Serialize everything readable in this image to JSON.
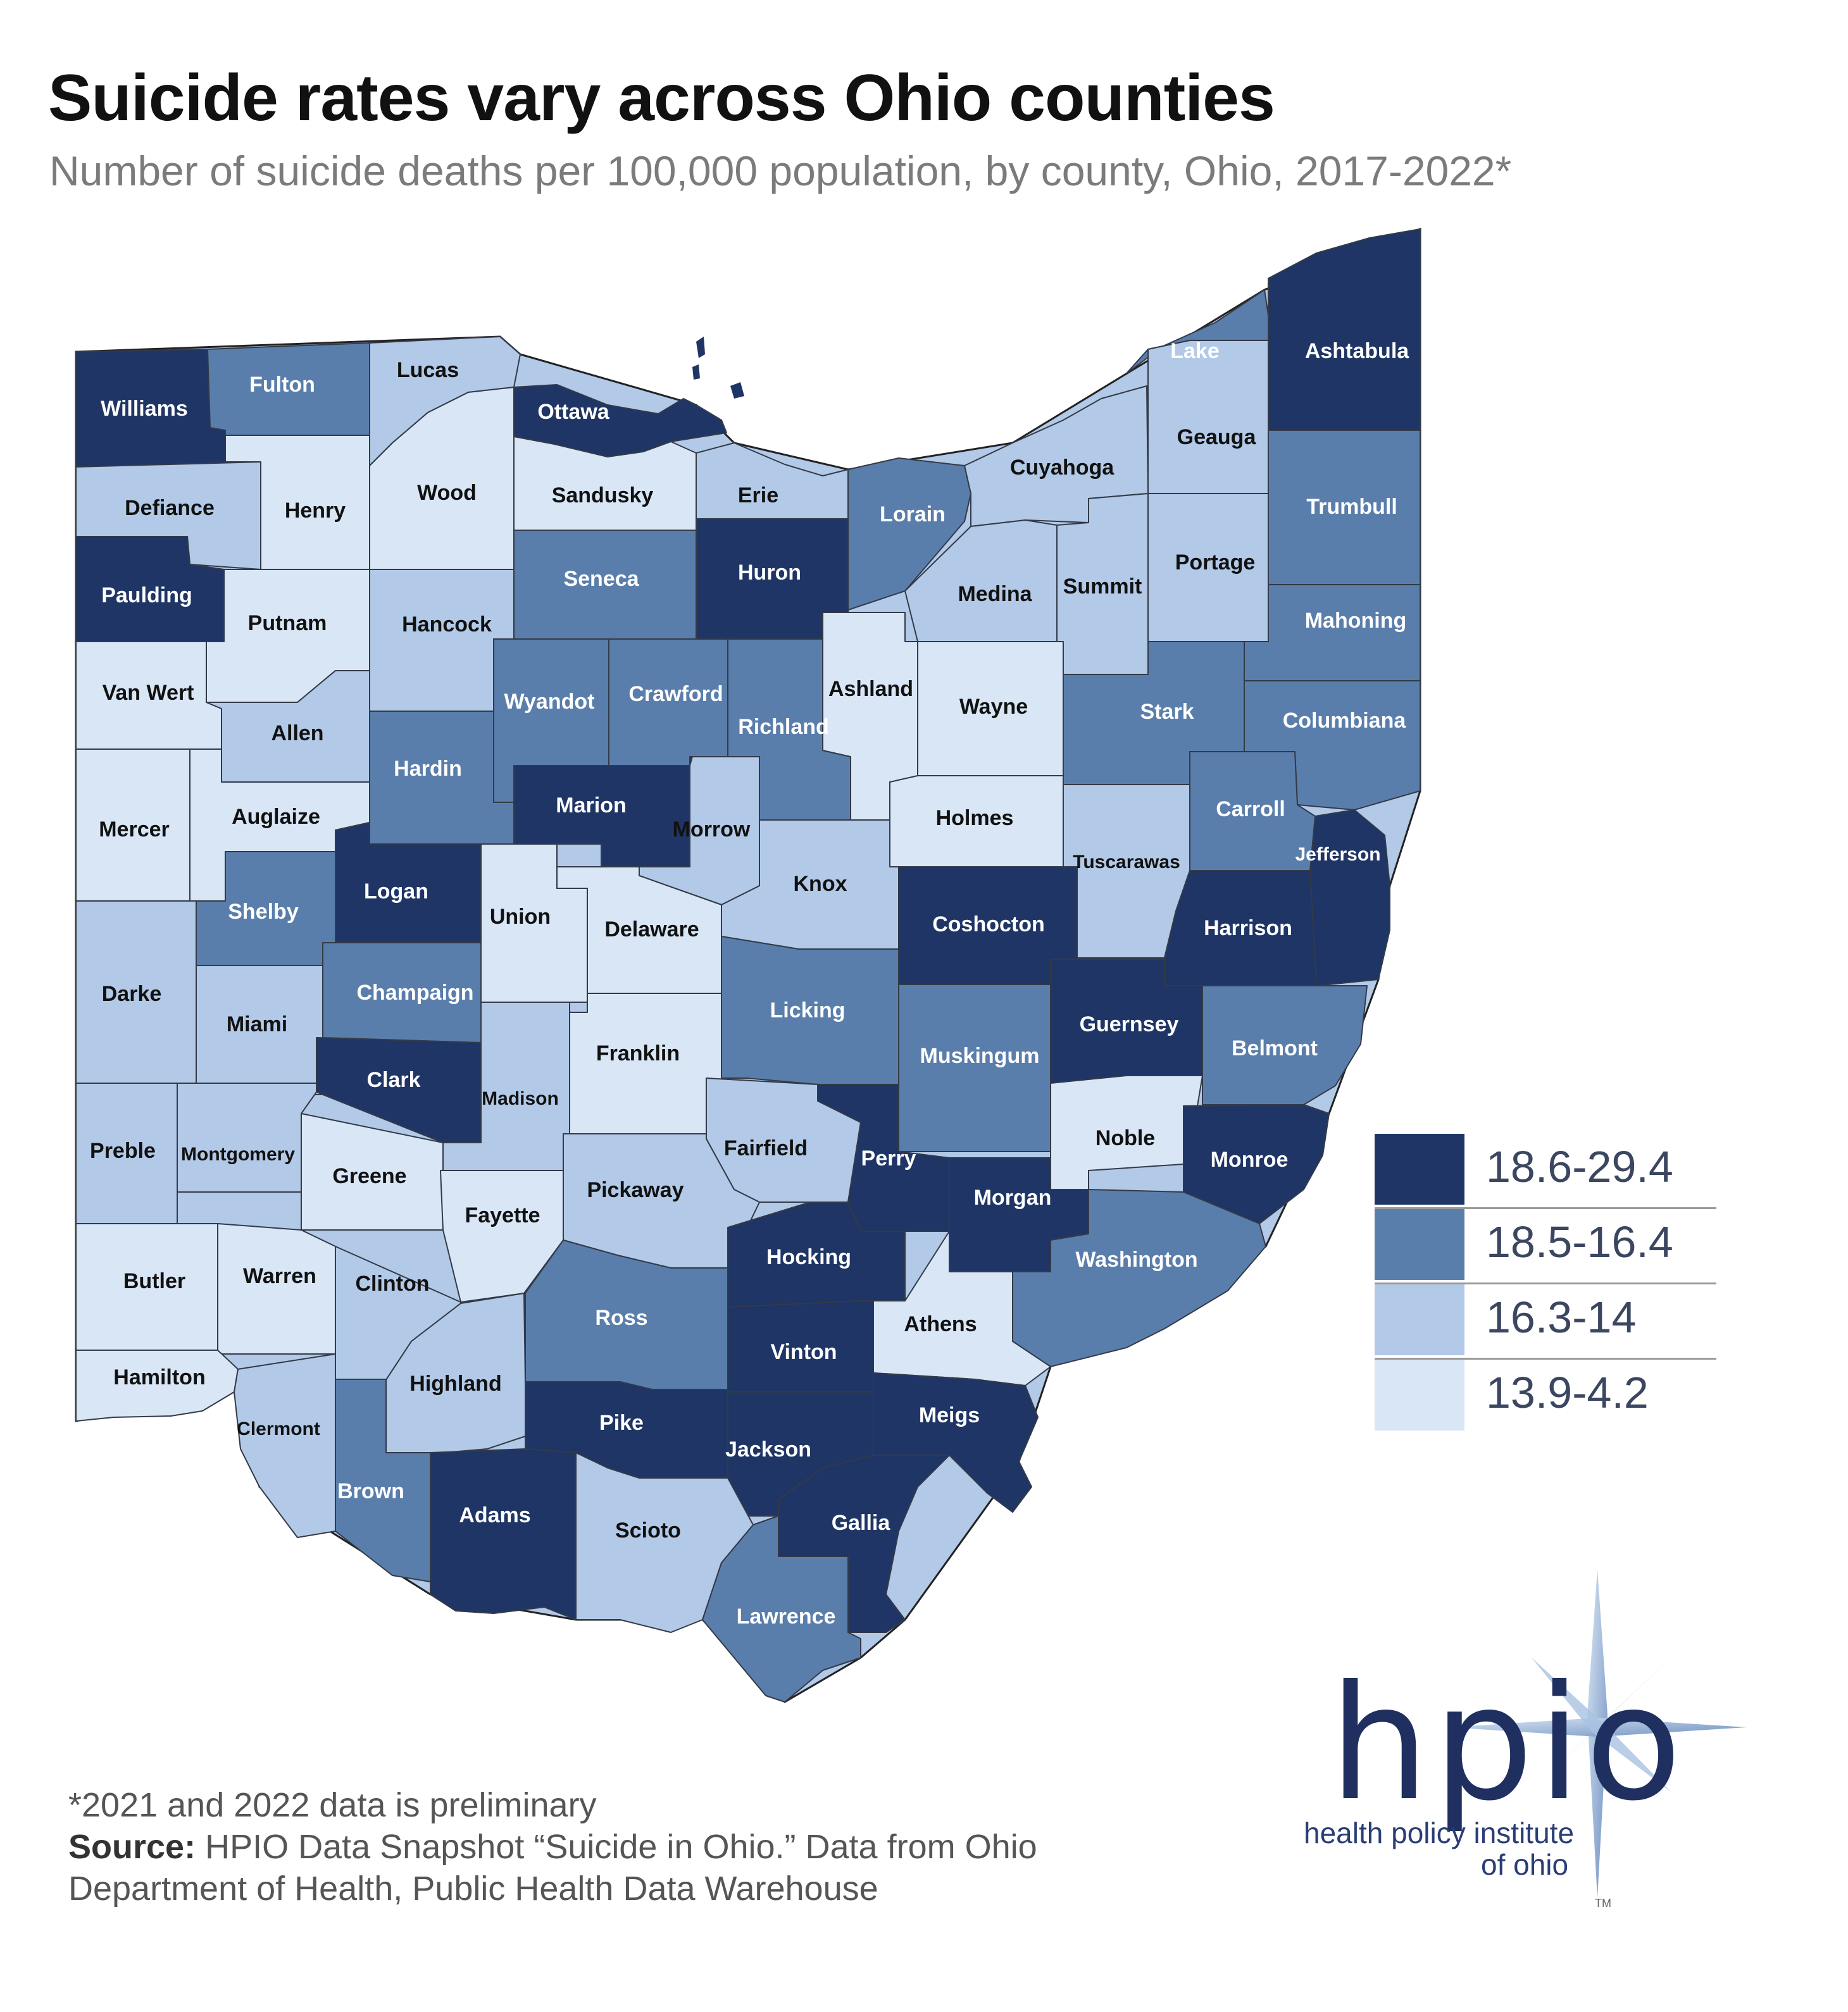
{
  "title": "Suicide rates vary across Ohio counties",
  "subtitle": "Number of suicide deaths per 100,000 population, by county, Ohio, 2017-2022*",
  "legend": [
    {
      "label": "18.6-29.4",
      "color": "#1f3565"
    },
    {
      "label": "18.5-16.4",
      "color": "#5a7eab"
    },
    {
      "label": "16.3-14",
      "color": "#b2c9e7"
    },
    {
      "label": "13.9-4.2",
      "color": "#d8e6f6"
    }
  ],
  "counties": [
    {
      "name": "Williams",
      "class": 0
    },
    {
      "name": "Fulton",
      "class": 1
    },
    {
      "name": "Lucas",
      "class": 2
    },
    {
      "name": "Ottawa",
      "class": 0
    },
    {
      "name": "Defiance",
      "class": 2
    },
    {
      "name": "Henry",
      "class": 3
    },
    {
      "name": "Wood",
      "class": 3
    },
    {
      "name": "Sandusky",
      "class": 3
    },
    {
      "name": "Erie",
      "class": 2
    },
    {
      "name": "Lorain",
      "class": 1
    },
    {
      "name": "Cuyahoga",
      "class": 2
    },
    {
      "name": "Lake",
      "class": 1
    },
    {
      "name": "Geauga",
      "class": 2
    },
    {
      "name": "Ashtabula",
      "class": 0
    },
    {
      "name": "Trumbull",
      "class": 1
    },
    {
      "name": "Paulding",
      "class": 0
    },
    {
      "name": "Putnam",
      "class": 3
    },
    {
      "name": "Hancock",
      "class": 2
    },
    {
      "name": "Seneca",
      "class": 1
    },
    {
      "name": "Huron",
      "class": 0
    },
    {
      "name": "Medina",
      "class": 2
    },
    {
      "name": "Summit",
      "class": 2
    },
    {
      "name": "Portage",
      "class": 2
    },
    {
      "name": "Mahoning",
      "class": 1
    },
    {
      "name": "Van Wert",
      "class": 3
    },
    {
      "name": "Allen",
      "class": 2
    },
    {
      "name": "Hardin",
      "class": 1
    },
    {
      "name": "Wyandot",
      "class": 1
    },
    {
      "name": "Crawford",
      "class": 1
    },
    {
      "name": "Richland",
      "class": 1
    },
    {
      "name": "Ashland",
      "class": 3
    },
    {
      "name": "Wayne",
      "class": 3
    },
    {
      "name": "Stark",
      "class": 1
    },
    {
      "name": "Columbiana",
      "class": 1
    },
    {
      "name": "Mercer",
      "class": 3
    },
    {
      "name": "Auglaize",
      "class": 3
    },
    {
      "name": "Marion",
      "class": 0
    },
    {
      "name": "Morrow",
      "class": 2
    },
    {
      "name": "Holmes",
      "class": 3
    },
    {
      "name": "Carroll",
      "class": 1
    },
    {
      "name": "Jefferson",
      "class": 0
    },
    {
      "name": "Tuscarawas",
      "class": 2
    },
    {
      "name": "Shelby",
      "class": 1
    },
    {
      "name": "Logan",
      "class": 0
    },
    {
      "name": "Union",
      "class": 3
    },
    {
      "name": "Delaware",
      "class": 3
    },
    {
      "name": "Knox",
      "class": 2
    },
    {
      "name": "Coshocton",
      "class": 0
    },
    {
      "name": "Harrison",
      "class": 0
    },
    {
      "name": "Darke",
      "class": 2
    },
    {
      "name": "Miami",
      "class": 2
    },
    {
      "name": "Champaign",
      "class": 1
    },
    {
      "name": "Licking",
      "class": 1
    },
    {
      "name": "Muskingum",
      "class": 1
    },
    {
      "name": "Guernsey",
      "class": 0
    },
    {
      "name": "Belmont",
      "class": 1
    },
    {
      "name": "Franklin",
      "class": 3
    },
    {
      "name": "Clark",
      "class": 0
    },
    {
      "name": "Madison",
      "class": 2
    },
    {
      "name": "Preble",
      "class": 2
    },
    {
      "name": "Montgomery",
      "class": 2
    },
    {
      "name": "Greene",
      "class": 3
    },
    {
      "name": "Fairfield",
      "class": 2
    },
    {
      "name": "Perry",
      "class": 0
    },
    {
      "name": "Noble",
      "class": 3
    },
    {
      "name": "Monroe",
      "class": 0
    },
    {
      "name": "Pickaway",
      "class": 2
    },
    {
      "name": "Fayette",
      "class": 3
    },
    {
      "name": "Morgan",
      "class": 0
    },
    {
      "name": "Washington",
      "class": 1
    },
    {
      "name": "Butler",
      "class": 3
    },
    {
      "name": "Warren",
      "class": 3
    },
    {
      "name": "Clinton",
      "class": 2
    },
    {
      "name": "Hocking",
      "class": 0
    },
    {
      "name": "Ross",
      "class": 1
    },
    {
      "name": "Athens",
      "class": 3
    },
    {
      "name": "Vinton",
      "class": 0
    },
    {
      "name": "Hamilton",
      "class": 3
    },
    {
      "name": "Highland",
      "class": 2
    },
    {
      "name": "Clermont",
      "class": 2
    },
    {
      "name": "Pike",
      "class": 0
    },
    {
      "name": "Jackson",
      "class": 0
    },
    {
      "name": "Meigs",
      "class": 0
    },
    {
      "name": "Brown",
      "class": 1
    },
    {
      "name": "Adams",
      "class": 0
    },
    {
      "name": "Scioto",
      "class": 2
    },
    {
      "name": "Gallia",
      "class": 0
    },
    {
      "name": "Lawrence",
      "class": 1
    }
  ],
  "notes": {
    "preliminary": "*2021 and 2022 data is preliminary",
    "source_label": "Source:",
    "source_text": " HPIO Data Snapshot “Suicide in Ohio.” Data from Ohio",
    "source_text2": "Department of Health, Public Health Data Warehouse"
  },
  "logo": {
    "word": "hpio",
    "line1": "health policy institute",
    "line2": "of ohio",
    "tm": "TM"
  }
}
